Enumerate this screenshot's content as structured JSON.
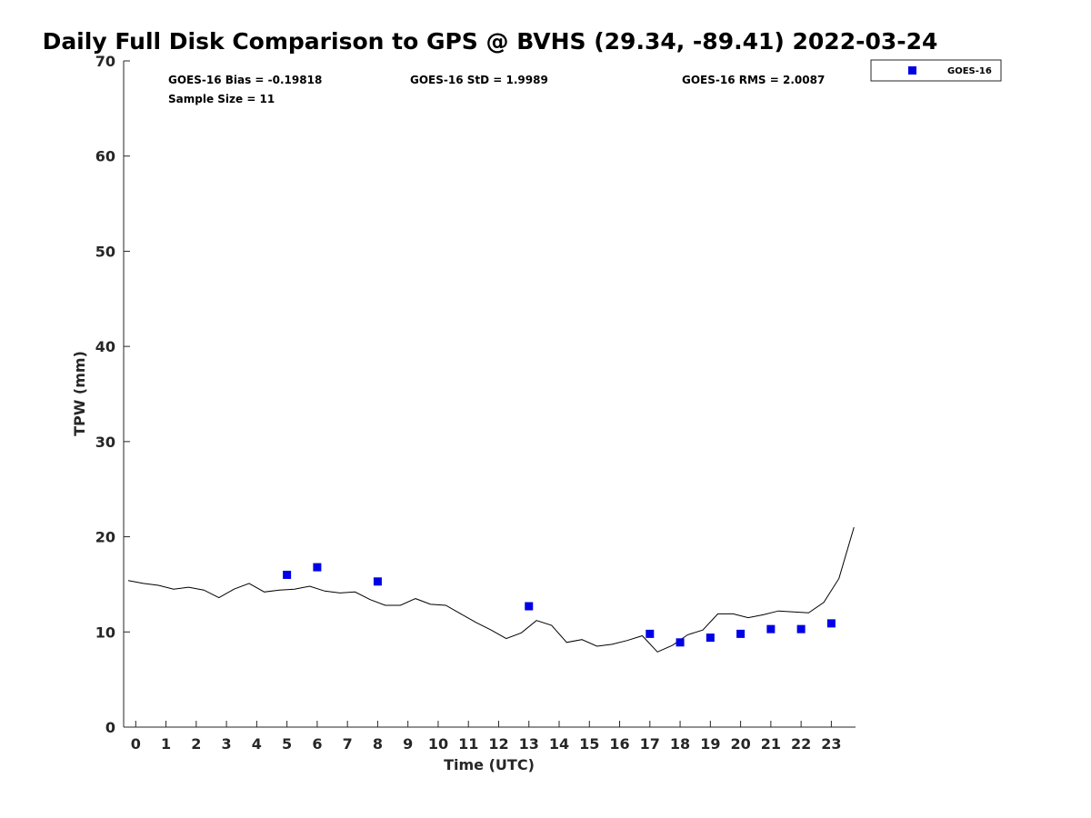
{
  "chart_data": {
    "type": "scatter",
    "title": "Daily Full Disk Comparison to GPS @ BVHS (29.34, -89.41) 2022-03-24",
    "xlabel": "Time (UTC)",
    "ylabel": "TPW (mm)",
    "xlim": [
      -0.4,
      23.8
    ],
    "ylim": [
      0,
      70
    ],
    "x_ticks": [
      0,
      1,
      2,
      3,
      4,
      5,
      6,
      7,
      8,
      9,
      10,
      11,
      12,
      13,
      14,
      15,
      16,
      17,
      18,
      19,
      20,
      21,
      22,
      23
    ],
    "y_ticks": [
      0,
      10,
      20,
      30,
      40,
      50,
      60,
      70
    ],
    "grid": false,
    "legend_position": "top-right",
    "stats": {
      "bias": "GOES-16 Bias = -0.19818",
      "std": "GOES-16 StD = 1.9989",
      "rms": "GOES-16 RMS = 2.0087",
      "sample": "Sample Size = 11"
    },
    "series": [
      {
        "name": "GOES-16",
        "kind": "scatter",
        "marker": "square",
        "color": "#0000e6",
        "x": [
          5,
          6,
          8,
          13,
          17,
          18,
          19,
          20,
          21,
          22,
          23
        ],
        "y": [
          16.0,
          16.8,
          15.3,
          12.7,
          9.8,
          8.9,
          9.4,
          9.8,
          10.3,
          10.3,
          10.9
        ]
      },
      {
        "kind": "line",
        "color": "#000000",
        "x": [
          -0.25,
          0.25,
          0.75,
          1.25,
          1.75,
          2.25,
          2.75,
          3.25,
          3.75,
          4.25,
          4.75,
          5.25,
          5.75,
          6.25,
          6.75,
          7.25,
          7.75,
          8.25,
          8.75,
          9.25,
          9.75,
          10.25,
          10.75,
          11.25,
          11.75,
          12.25,
          12.75,
          13.25,
          13.75,
          14.25,
          14.75,
          15.25,
          15.75,
          16.25,
          16.75,
          17.25,
          17.75,
          18.25,
          18.75,
          19.25,
          19.75,
          20.25,
          20.75,
          21.25,
          21.75,
          22.25,
          22.75,
          23.25,
          23.75
        ],
        "y": [
          15.4,
          15.1,
          14.9,
          14.5,
          14.7,
          14.4,
          13.6,
          14.5,
          15.1,
          14.2,
          14.4,
          14.5,
          14.8,
          14.3,
          14.1,
          14.2,
          13.4,
          12.8,
          12.8,
          13.5,
          12.9,
          12.8,
          11.9,
          11.0,
          10.2,
          9.3,
          9.9,
          11.2,
          10.7,
          8.9,
          9.2,
          8.5,
          8.7,
          9.1,
          9.6,
          7.9,
          8.6,
          9.7,
          10.2,
          11.9,
          11.9,
          11.5,
          11.8,
          12.2,
          12.1,
          12.0,
          13.1,
          15.6,
          21.0
        ]
      }
    ]
  }
}
